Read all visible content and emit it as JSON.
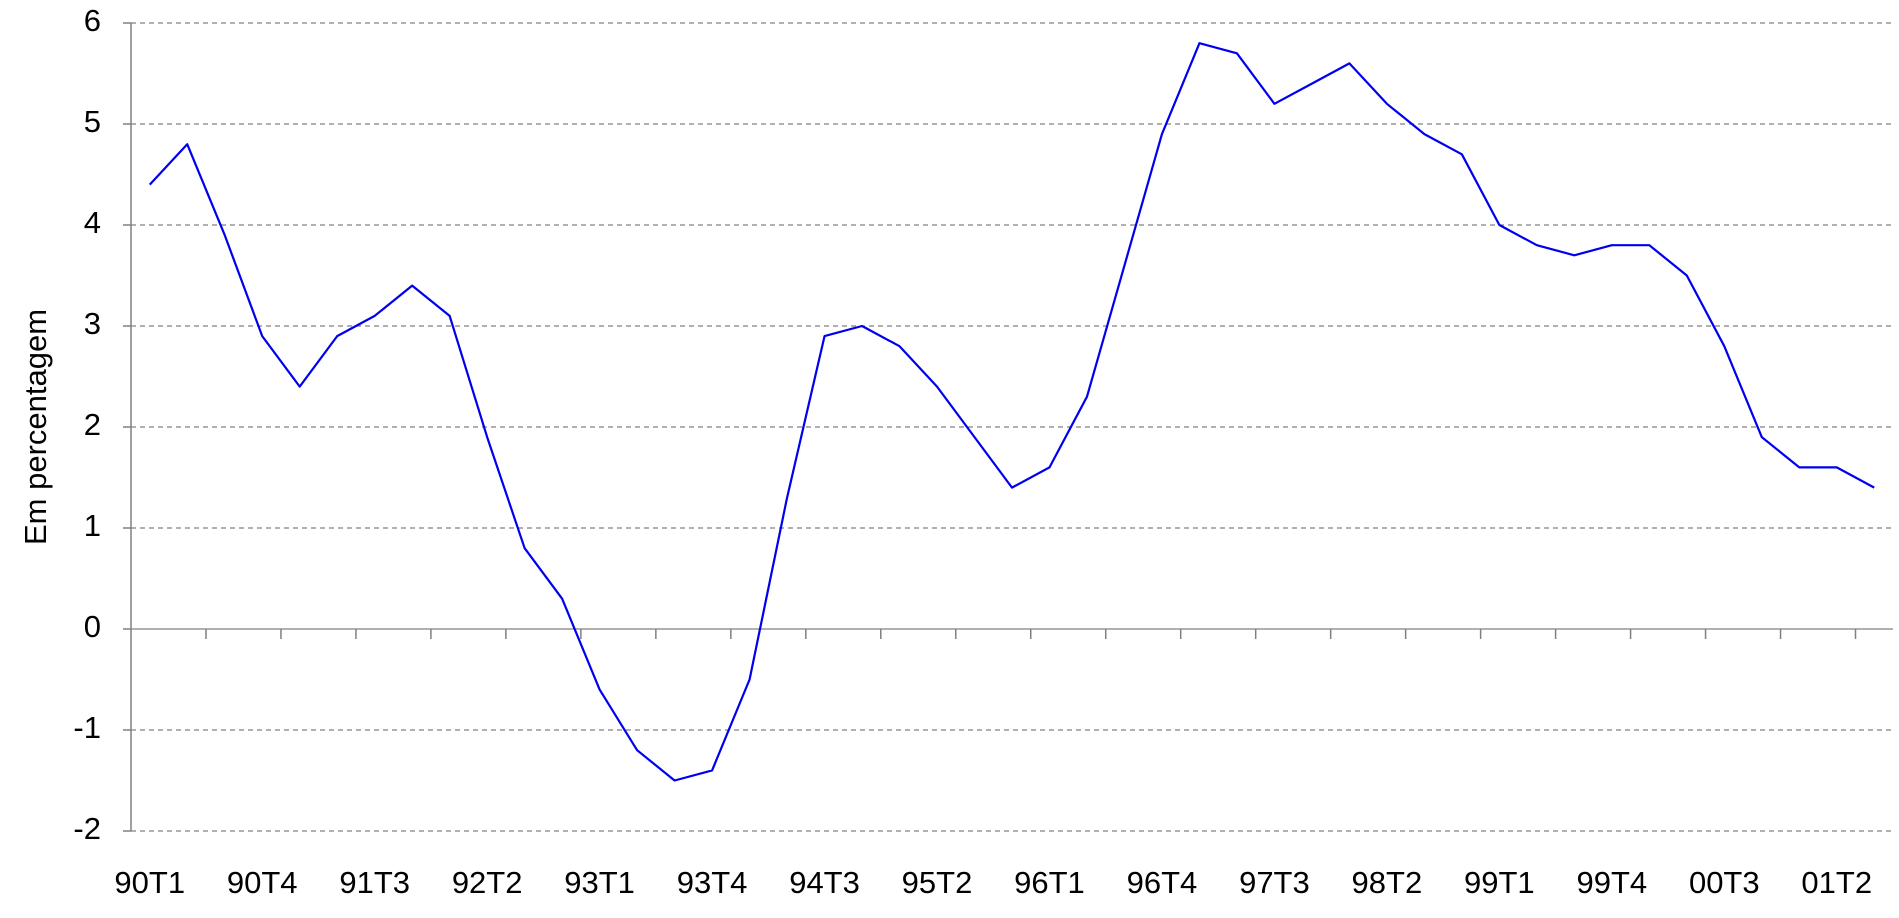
{
  "chart_data": {
    "type": "line",
    "y_label": "Em percentagem",
    "categories": [
      "90T1",
      null,
      null,
      "90T4",
      null,
      null,
      "91T3",
      null,
      null,
      "92T2",
      null,
      null,
      "93T1",
      null,
      null,
      "93T4",
      null,
      null,
      "94T3",
      null,
      null,
      "95T2",
      null,
      null,
      "96T1",
      null,
      null,
      "96T4",
      null,
      null,
      "97T3",
      null,
      null,
      "98T2",
      null,
      null,
      "99T1",
      null,
      null,
      "99T4",
      null,
      null,
      "00T3",
      null,
      null,
      "01T2",
      null
    ],
    "series": [
      {
        "name": "Em percentagem",
        "color": "#0000ee",
        "values": [
          4.4,
          4.8,
          3.9,
          2.9,
          2.4,
          2.9,
          3.1,
          3.4,
          3.1,
          1.9,
          0.8,
          0.3,
          -0.6,
          -1.2,
          -1.5,
          -1.4,
          -0.5,
          1.3,
          2.9,
          3.0,
          2.8,
          2.4,
          1.9,
          1.4,
          1.6,
          2.3,
          3.6,
          4.9,
          5.8,
          5.7,
          5.2,
          5.4,
          5.6,
          5.2,
          4.9,
          4.7,
          4.0,
          3.8,
          3.7,
          3.8,
          3.8,
          3.5,
          2.8,
          1.9,
          1.6,
          1.6,
          1.4
        ]
      }
    ],
    "ylim": [
      -2,
      6
    ],
    "yticks": [
      -2,
      -1,
      0,
      1,
      2,
      3,
      4,
      5,
      6
    ],
    "grid": true
  }
}
